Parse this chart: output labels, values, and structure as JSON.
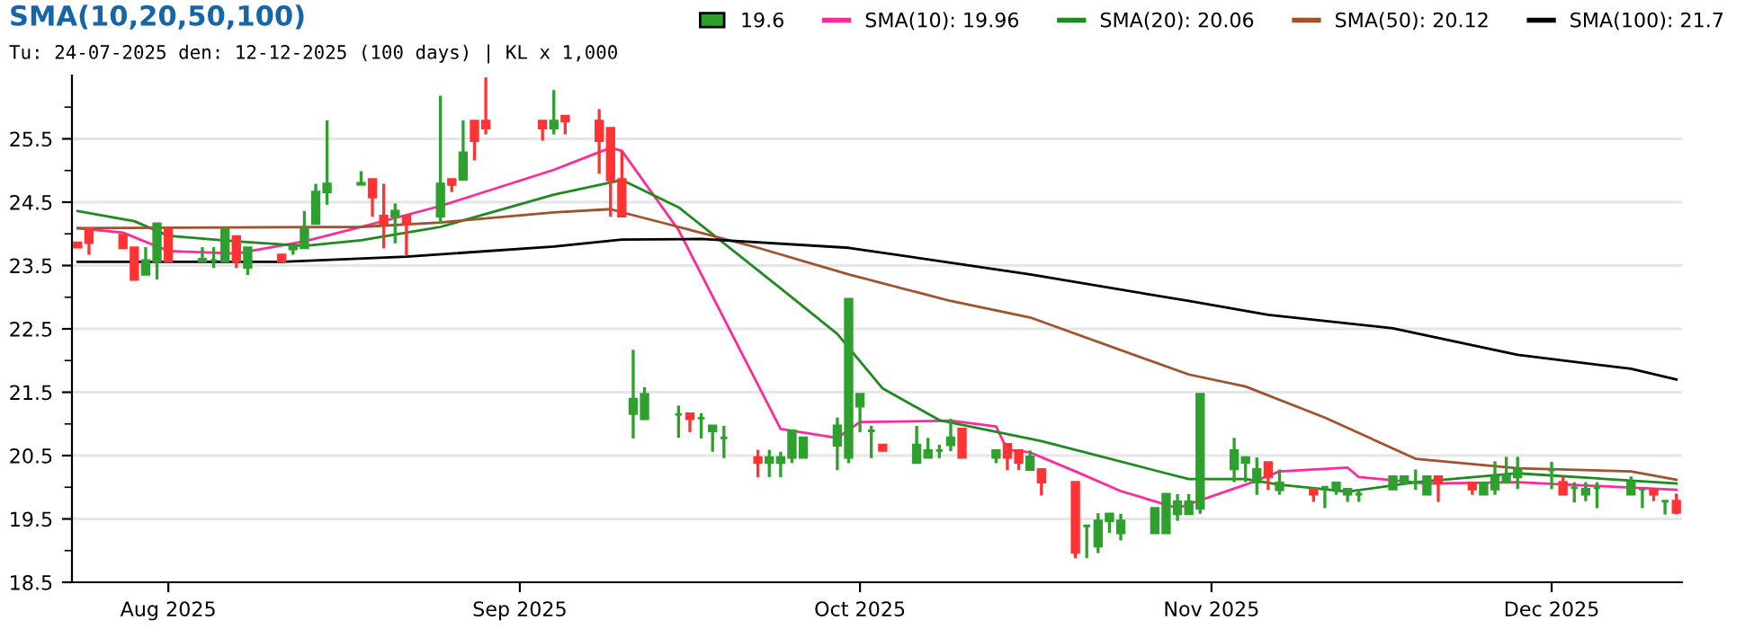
{
  "chart_data": {
    "type": "candlestick",
    "title": "SMA(10,20,50,100)",
    "subtitle": "Tu: 24-07-2025 den: 12-12-2025 (100 days) | KL x 1,000",
    "x": [
      "2025-07-24",
      "2025-07-25",
      "2025-07-28",
      "2025-07-29",
      "2025-07-30",
      "2025-07-31",
      "2025-08-01",
      "2025-08-04",
      "2025-08-05",
      "2025-08-06",
      "2025-08-07",
      "2025-08-08",
      "2025-08-11",
      "2025-08-12",
      "2025-08-13",
      "2025-08-14",
      "2025-08-15",
      "2025-08-18",
      "2025-08-19",
      "2025-08-20",
      "2025-08-21",
      "2025-08-22",
      "2025-08-25",
      "2025-08-26",
      "2025-08-27",
      "2025-08-28",
      "2025-08-29",
      "2025-09-03",
      "2025-09-04",
      "2025-09-05",
      "2025-09-08",
      "2025-09-09",
      "2025-09-10",
      "2025-09-11",
      "2025-09-12",
      "2025-09-15",
      "2025-09-16",
      "2025-09-17",
      "2025-09-18",
      "2025-09-19",
      "2025-09-22",
      "2025-09-23",
      "2025-09-24",
      "2025-09-25",
      "2025-09-26",
      "2025-09-29",
      "2025-09-30",
      "2025-10-01",
      "2025-10-02",
      "2025-10-03",
      "2025-10-06",
      "2025-10-07",
      "2025-10-08",
      "2025-10-09",
      "2025-10-10",
      "2025-10-13",
      "2025-10-14",
      "2025-10-15",
      "2025-10-16",
      "2025-10-17",
      "2025-10-20",
      "2025-10-21",
      "2025-10-22",
      "2025-10-23",
      "2025-10-24",
      "2025-10-27",
      "2025-10-28",
      "2025-10-29",
      "2025-10-30",
      "2025-10-31",
      "2025-11-03",
      "2025-11-04",
      "2025-11-05",
      "2025-11-06",
      "2025-11-07",
      "2025-11-10",
      "2025-11-11",
      "2025-11-12",
      "2025-11-13",
      "2025-11-14",
      "2025-11-17",
      "2025-11-18",
      "2025-11-19",
      "2025-11-20",
      "2025-11-21",
      "2025-11-24",
      "2025-11-25",
      "2025-11-26",
      "2025-11-27",
      "2025-11-28",
      "2025-12-01",
      "2025-12-02",
      "2025-12-03",
      "2025-12-04",
      "2025-12-05",
      "2025-12-08",
      "2025-12-09",
      "2025-12-10",
      "2025-12-11",
      "2025-12-12"
    ],
    "series": [
      {
        "type": "candlestick",
        "name": "19.6",
        "color": "#2ea02e",
        "ohlc": [
          [
            23.86,
            23.86,
            23.79,
            23.79
          ],
          [
            24.08,
            24.08,
            23.67,
            23.86
          ],
          [
            23.98,
            23.98,
            23.78,
            23.78
          ],
          [
            23.78,
            23.78,
            23.28,
            23.28
          ],
          [
            23.36,
            23.79,
            23.36,
            23.58
          ],
          [
            23.57,
            24.16,
            23.28,
            24.16
          ],
          [
            24.08,
            24.08,
            23.57,
            23.57
          ],
          [
            23.57,
            23.79,
            23.57,
            23.6
          ],
          [
            23.58,
            23.79,
            23.46,
            23.58
          ],
          [
            23.57,
            24.08,
            23.57,
            24.08
          ],
          [
            23.96,
            23.96,
            23.46,
            23.57
          ],
          [
            23.47,
            23.78,
            23.35,
            23.78
          ],
          [
            23.67,
            23.67,
            23.57,
            23.57
          ],
          [
            23.76,
            23.83,
            23.67,
            23.8
          ],
          [
            23.78,
            24.36,
            23.78,
            24.08
          ],
          [
            24.16,
            24.79,
            24.16,
            24.66
          ],
          [
            24.66,
            25.79,
            24.46,
            24.79
          ],
          [
            24.78,
            24.99,
            24.78,
            24.8
          ],
          [
            24.86,
            24.86,
            24.27,
            24.58
          ],
          [
            24.28,
            24.79,
            23.77,
            24.16
          ],
          [
            24.28,
            24.48,
            23.85,
            24.36
          ],
          [
            24.28,
            24.28,
            23.66,
            24.16
          ],
          [
            24.28,
            26.18,
            24.16,
            24.79
          ],
          [
            24.86,
            24.86,
            24.66,
            24.78
          ],
          [
            24.86,
            25.79,
            24.86,
            25.28
          ],
          [
            25.78,
            25.78,
            25.16,
            25.47
          ],
          [
            25.78,
            26.47,
            25.57,
            25.67
          ],
          [
            25.78,
            25.78,
            25.47,
            25.67
          ],
          [
            25.67,
            26.27,
            25.57,
            25.78
          ],
          [
            25.86,
            25.86,
            25.57,
            25.78
          ],
          [
            25.78,
            25.97,
            24.95,
            25.47
          ],
          [
            25.67,
            25.67,
            24.27,
            24.85
          ],
          [
            24.86,
            25.31,
            24.28,
            24.28
          ],
          [
            21.16,
            22.17,
            20.77,
            21.39
          ],
          [
            21.08,
            21.58,
            21.08,
            21.47
          ],
          [
            21.15,
            21.29,
            20.78,
            21.15
          ],
          [
            21.16,
            21.16,
            20.87,
            21.08
          ],
          [
            21.09,
            21.17,
            20.77,
            21.09
          ],
          [
            20.89,
            20.97,
            20.56,
            20.97
          ],
          [
            20.78,
            20.97,
            20.46,
            20.78
          ],
          [
            20.47,
            20.59,
            20.16,
            20.39
          ],
          [
            20.39,
            20.59,
            20.16,
            20.47
          ],
          [
            20.39,
            20.56,
            20.16,
            20.47
          ],
          [
            20.47,
            20.89,
            20.38,
            20.89
          ],
          [
            20.47,
            20.78,
            20.47,
            20.78
          ],
          [
            20.66,
            21.1,
            20.27,
            20.97
          ],
          [
            20.47,
            22.97,
            20.38,
            22.97
          ],
          [
            21.28,
            21.47,
            20.87,
            21.47
          ],
          [
            20.89,
            20.97,
            20.46,
            20.89
          ],
          [
            20.67,
            20.67,
            20.58,
            20.58
          ],
          [
            20.39,
            20.97,
            20.39,
            20.67
          ],
          [
            20.47,
            20.78,
            20.47,
            20.58
          ],
          [
            20.58,
            20.67,
            20.46,
            20.58
          ],
          [
            20.67,
            21.08,
            20.57,
            20.78
          ],
          [
            20.92,
            20.92,
            20.47,
            20.47
          ],
          [
            20.47,
            20.58,
            20.38,
            20.58
          ],
          [
            20.68,
            20.68,
            20.27,
            20.47
          ],
          [
            20.58,
            20.58,
            20.27,
            20.39
          ],
          [
            20.28,
            20.58,
            20.28,
            20.48
          ],
          [
            20.28,
            20.28,
            19.87,
            20.08
          ],
          [
            20.08,
            20.08,
            18.88,
            18.97
          ],
          [
            19.39,
            19.39,
            18.88,
            19.39
          ],
          [
            19.07,
            19.59,
            18.96,
            19.47
          ],
          [
            19.47,
            19.58,
            19.28,
            19.58
          ],
          [
            19.28,
            19.58,
            19.16,
            19.47
          ],
          [
            19.28,
            19.67,
            19.28,
            19.67
          ],
          [
            19.28,
            19.89,
            19.28,
            19.89
          ],
          [
            19.58,
            19.89,
            19.47,
            19.77
          ],
          [
            19.58,
            19.89,
            19.58,
            19.77
          ],
          [
            19.67,
            21.47,
            19.58,
            21.47
          ],
          [
            20.29,
            20.78,
            20.08,
            20.58
          ],
          [
            20.39,
            20.47,
            20.08,
            20.47
          ],
          [
            20.08,
            20.47,
            19.88,
            20.28
          ],
          [
            20.39,
            20.39,
            19.96,
            20.16
          ],
          [
            19.96,
            20.28,
            19.88,
            20.07
          ],
          [
            19.97,
            19.97,
            19.77,
            19.89
          ],
          [
            20.0,
            20.0,
            19.67,
            20.0
          ],
          [
            19.97,
            20.07,
            19.88,
            20.07
          ],
          [
            19.89,
            19.97,
            19.77,
            19.97
          ],
          [
            19.89,
            19.97,
            19.77,
            19.89
          ],
          [
            19.97,
            20.17,
            19.97,
            20.17
          ],
          [
            20.07,
            20.17,
            20.07,
            20.17
          ],
          [
            20.07,
            20.28,
            19.96,
            20.07
          ],
          [
            19.89,
            20.17,
            19.89,
            20.17
          ],
          [
            20.17,
            20.17,
            19.77,
            20.07
          ],
          [
            20.07,
            20.07,
            19.88,
            19.97
          ],
          [
            19.89,
            20.07,
            19.89,
            20.07
          ],
          [
            19.97,
            20.41,
            19.88,
            20.17
          ],
          [
            20.08,
            20.48,
            20.08,
            20.19
          ],
          [
            20.16,
            20.48,
            19.97,
            20.29
          ],
          [
            20.27,
            20.4,
            19.97,
            20.27
          ],
          [
            20.08,
            20.17,
            19.89,
            19.89
          ],
          [
            19.99,
            20.08,
            19.76,
            19.99
          ],
          [
            19.89,
            20.08,
            19.78,
            19.97
          ],
          [
            19.99,
            20.08,
            19.67,
            19.99
          ],
          [
            19.89,
            20.17,
            19.89,
            20.08
          ],
          [
            19.97,
            19.97,
            19.67,
            19.97
          ],
          [
            19.97,
            19.97,
            19.78,
            19.89
          ],
          [
            19.78,
            19.78,
            19.57,
            19.78
          ],
          [
            19.78,
            19.9,
            19.57,
            19.6
          ]
        ],
        "colors": [
          "#ff3333",
          "#ff3333",
          "#ff3333",
          "#ff3333",
          "#2ea02e",
          "#2ea02e",
          "#ff3333",
          "#2ea02e",
          "#2ea02e",
          "#2ea02e",
          "#ff3333",
          "#2ea02e",
          "#ff3333",
          "#2ea02e",
          "#2ea02e",
          "#2ea02e",
          "#2ea02e",
          "#2ea02e",
          "#ff3333",
          "#ff3333",
          "#2ea02e",
          "#ff3333",
          "#2ea02e",
          "#ff3333",
          "#2ea02e",
          "#ff3333",
          "#ff3333",
          "#ff3333",
          "#2ea02e",
          "#ff3333",
          "#ff3333",
          "#ff3333",
          "#ff3333",
          "#2ea02e",
          "#2ea02e",
          "#2ea02e",
          "#ff3333",
          "#2ea02e",
          "#2ea02e",
          "#2ea02e",
          "#ff3333",
          "#2ea02e",
          "#2ea02e",
          "#2ea02e",
          "#2ea02e",
          "#2ea02e",
          "#2ea02e",
          "#2ea02e",
          "#2ea02e",
          "#ff3333",
          "#2ea02e",
          "#2ea02e",
          "#2ea02e",
          "#2ea02e",
          "#ff3333",
          "#2ea02e",
          "#ff3333",
          "#ff3333",
          "#2ea02e",
          "#ff3333",
          "#ff3333",
          "#2ea02e",
          "#2ea02e",
          "#2ea02e",
          "#2ea02e",
          "#2ea02e",
          "#2ea02e",
          "#2ea02e",
          "#2ea02e",
          "#2ea02e",
          "#2ea02e",
          "#2ea02e",
          "#2ea02e",
          "#ff3333",
          "#2ea02e",
          "#ff3333",
          "#2ea02e",
          "#2ea02e",
          "#2ea02e",
          "#2ea02e",
          "#2ea02e",
          "#2ea02e",
          "#2ea02e",
          "#2ea02e",
          "#ff3333",
          "#ff3333",
          "#2ea02e",
          "#2ea02e",
          "#2ea02e",
          "#2ea02e",
          "#2ea02e",
          "#ff3333",
          "#2ea02e",
          "#2ea02e",
          "#2ea02e",
          "#2ea02e",
          "#2ea02e",
          "#ff3333",
          "#2ea02e",
          "#ff3333"
        ]
      },
      {
        "type": "line",
        "name": "SMA(10): 19.96",
        "color": "#ff2a9a",
        "x": [
          "2025-07-24",
          "2025-07-28",
          "2025-08-01",
          "2025-08-07",
          "2025-08-13",
          "2025-08-18",
          "2025-08-25",
          "2025-09-04",
          "2025-09-09",
          "2025-09-10",
          "2025-09-15",
          "2025-09-24",
          "2025-09-29",
          "2025-10-01",
          "2025-10-09",
          "2025-10-13",
          "2025-10-14",
          "2025-10-16",
          "2025-10-20",
          "2025-10-24",
          "2025-10-29",
          "2025-11-04",
          "2025-11-07",
          "2025-11-13",
          "2025-11-14",
          "2025-11-20",
          "2025-11-28",
          "2025-12-12"
        ],
        "values": [
          24.09,
          24.02,
          23.73,
          23.69,
          23.88,
          24.11,
          24.44,
          25.01,
          25.36,
          25.31,
          24.06,
          20.92,
          20.78,
          21.03,
          21.05,
          20.96,
          20.59,
          20.55,
          20.25,
          19.94,
          19.67,
          20.04,
          20.25,
          20.31,
          20.16,
          20.06,
          20.08,
          19.96
        ]
      },
      {
        "type": "line",
        "name": "SMA(20): 20.06",
        "color": "#1f8a1f",
        "x": [
          "2025-07-24",
          "2025-07-29",
          "2025-08-01",
          "2025-08-07",
          "2025-08-13",
          "2025-08-18",
          "2025-08-25",
          "2025-09-04",
          "2025-09-10",
          "2025-09-15",
          "2025-09-24",
          "2025-09-29",
          "2025-10-03",
          "2025-10-08",
          "2025-10-17",
          "2025-10-28",
          "2025-10-30",
          "2025-11-04",
          "2025-11-07",
          "2025-11-13",
          "2025-11-19",
          "2025-11-28",
          "2025-12-12"
        ],
        "values": [
          24.36,
          24.2,
          23.97,
          23.88,
          23.81,
          23.9,
          24.11,
          24.62,
          24.85,
          24.42,
          23.14,
          22.42,
          21.56,
          21.06,
          20.73,
          20.22,
          20.13,
          20.13,
          20.04,
          19.93,
          20.08,
          20.22,
          20.06
        ]
      },
      {
        "type": "line",
        "name": "SMA(50): 20.12",
        "color": "#a0522d",
        "x": [
          "2025-07-24",
          "2025-08-18",
          "2025-08-25",
          "2025-09-04",
          "2025-09-09",
          "2025-09-10",
          "2025-09-15",
          "2025-09-22",
          "2025-09-30",
          "2025-10-09",
          "2025-10-16",
          "2025-10-30",
          "2025-11-04",
          "2025-11-11",
          "2025-11-19",
          "2025-11-28",
          "2025-12-08",
          "2025-12-12"
        ],
        "values": [
          24.09,
          24.11,
          24.18,
          24.34,
          24.39,
          24.34,
          24.11,
          23.78,
          23.36,
          22.94,
          22.68,
          21.78,
          21.59,
          21.1,
          20.45,
          20.3,
          20.25,
          20.12
        ]
      },
      {
        "type": "line",
        "name": "SMA(100): 21.7",
        "color": "#000000",
        "x": [
          "2025-07-24",
          "2025-08-11",
          "2025-08-22",
          "2025-09-04",
          "2025-09-10",
          "2025-09-17",
          "2025-09-30",
          "2025-10-16",
          "2025-10-30",
          "2025-11-06",
          "2025-11-17",
          "2025-11-28",
          "2025-12-08",
          "2025-12-12"
        ],
        "values": [
          23.56,
          23.56,
          23.64,
          23.8,
          23.91,
          23.92,
          23.78,
          23.36,
          22.94,
          22.72,
          22.51,
          22.09,
          21.87,
          21.7
        ]
      }
    ],
    "xlim": [
      "2025-07-23T12:00",
      "2025-12-12T12:00"
    ],
    "xticks": [
      {
        "value": "2025-08-01",
        "label": "Aug 2025"
      },
      {
        "value": "2025-09-01",
        "label": "Sep 2025"
      },
      {
        "value": "2025-10-01",
        "label": "Oct 2025"
      },
      {
        "value": "2025-11-01",
        "label": "Nov 2025"
      },
      {
        "value": "2025-12-01",
        "label": "Dec 2025"
      }
    ],
    "ylim": [
      18.5,
      26.5
    ],
    "yticks": [
      18.5,
      {
        "value": 19,
        "label": null
      },
      19.5,
      {
        "value": 20,
        "label": null
      },
      20.5,
      {
        "value": 21,
        "label": null
      },
      21.5,
      {
        "value": 22,
        "label": null
      },
      22.5,
      {
        "value": 23,
        "label": null
      },
      23.5,
      {
        "value": 24,
        "label": null
      },
      24.5,
      {
        "value": 25,
        "label": null
      },
      25.5,
      {
        "value": 26,
        "label": null
      }
    ],
    "grid": "y",
    "legend": "top right"
  }
}
